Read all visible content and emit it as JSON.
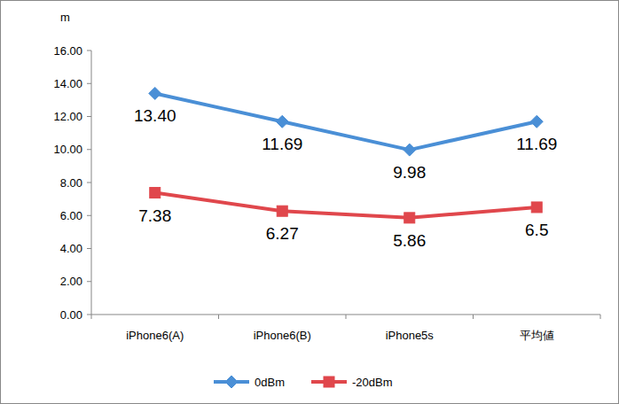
{
  "chart_data": {
    "type": "line",
    "y_label": "m",
    "categories": [
      "iPhone6(A)",
      "iPhone6(B)",
      "iPhone5s",
      "平均値"
    ],
    "series": [
      {
        "name": "0dBm",
        "color": "#4a8fd6",
        "marker": "diamond",
        "values": [
          13.4,
          11.69,
          9.98,
          11.69
        ],
        "value_labels": [
          "13.40",
          "11.69",
          "9.98",
          "11.69"
        ]
      },
      {
        "name": "-20dBm",
        "color": "#e0474c",
        "marker": "square",
        "values": [
          7.38,
          6.27,
          5.86,
          6.5
        ]
      }
    ],
    "ylim": [
      0,
      16
    ],
    "yticks": [
      {
        "value": 0,
        "label": "0.00"
      },
      {
        "value": 2,
        "label": "2.00"
      },
      {
        "value": 4,
        "label": "4.00"
      },
      {
        "value": 6,
        "label": "6.00"
      },
      {
        "value": 8,
        "label": "8.00"
      },
      {
        "value": 10,
        "label": "10.00"
      },
      {
        "value": 12,
        "label": "12.00"
      },
      {
        "value": 14,
        "label": "14.00"
      },
      {
        "value": 16,
        "label": "16.00"
      }
    ],
    "grid": false,
    "data_labels": true,
    "legend": "bottom"
  }
}
